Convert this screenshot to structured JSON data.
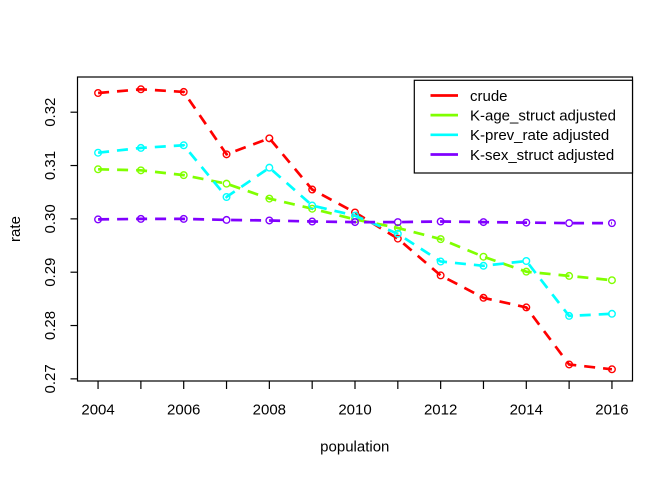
{
  "figure": {
    "background": "#FFFFFF",
    "title": ""
  },
  "chart_data": {
    "type": "line",
    "title": "",
    "xlabel": "population",
    "ylabel": "rate",
    "grid": false,
    "line_style": "dashed",
    "marker": "open-circle",
    "x": [
      2004,
      2005,
      2006,
      2007,
      2008,
      2009,
      2010,
      2011,
      2012,
      2013,
      2014,
      2015,
      2016
    ],
    "xtick_years": [
      2004,
      2005,
      2006,
      2007,
      2008,
      2009,
      2010,
      2011,
      2012,
      2013,
      2014,
      2015,
      2016
    ],
    "xticks_labeled": [
      2004,
      2006,
      2008,
      2010,
      2012,
      2014,
      2016
    ],
    "xtick_labels": [
      "2004",
      "2006",
      "2008",
      "2010",
      "2012",
      "2014",
      "2016"
    ],
    "yticks": [
      0.27,
      0.28,
      0.29,
      0.3,
      0.31,
      0.32
    ],
    "ytick_labels": [
      "0.27",
      "0.28",
      "0.29",
      "0.30",
      "0.31",
      "0.32"
    ],
    "xlim": [
      2003.52,
      2016.48
    ],
    "ylim": [
      0.2696,
      0.3266
    ],
    "legend": {
      "position": "top-right",
      "border": true,
      "entries": [
        "crude",
        "K-age_struct adjusted",
        "K-prev_rate adjusted",
        "K-sex_struct adjusted"
      ]
    },
    "series": [
      {
        "name": "crude",
        "color": "#FF0000",
        "values": [
          0.3236,
          0.3243,
          0.3238,
          0.3121,
          0.3151,
          0.3055,
          0.3012,
          0.2963,
          0.2894,
          0.2852,
          0.2834,
          0.2727,
          0.2718
        ]
      },
      {
        "name": "K-age_struct adjusted",
        "color": "#80FF00",
        "values": [
          0.3093,
          0.3091,
          0.3082,
          0.3066,
          0.3038,
          0.3019,
          0.2999,
          0.2983,
          0.2962,
          0.2929,
          0.2901,
          0.2893,
          0.2885
        ]
      },
      {
        "name": "K-prev_rate adjusted",
        "color": "#00FFFF",
        "values": [
          0.3124,
          0.3133,
          0.3138,
          0.3041,
          0.3096,
          0.3025,
          0.3006,
          0.2972,
          0.292,
          0.2912,
          0.2921,
          0.2818,
          0.2822
        ]
      },
      {
        "name": "K-sex_struct adjusted",
        "color": "#8000FF",
        "values": [
          0.2999,
          0.3,
          0.3,
          0.2998,
          0.2997,
          0.2995,
          0.2994,
          0.2994,
          0.2995,
          0.2994,
          0.2993,
          0.2992,
          0.2992
        ]
      }
    ],
    "axis_color": "#000000",
    "text_color": "#000000"
  }
}
